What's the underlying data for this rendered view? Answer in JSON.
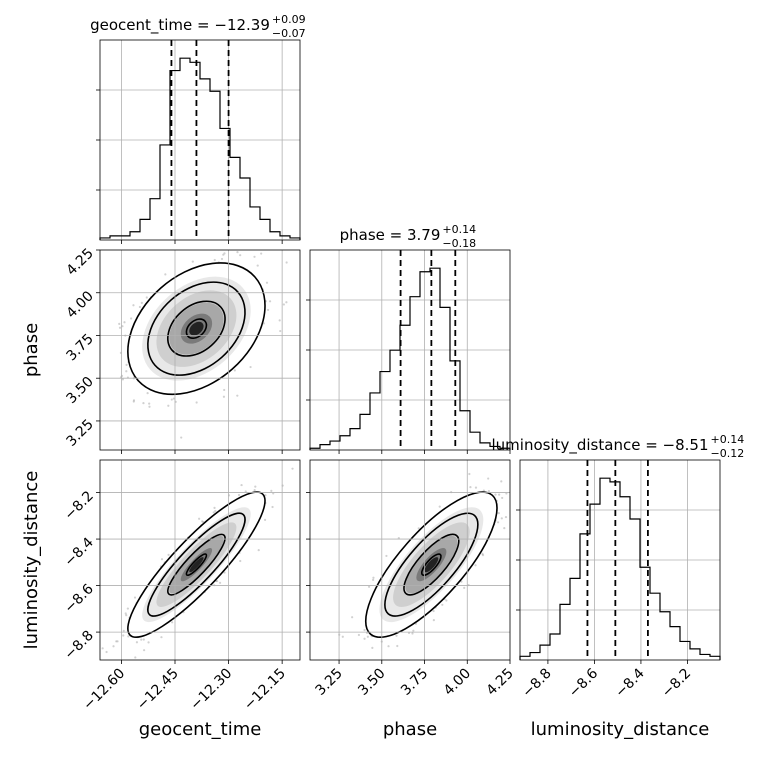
{
  "chart_data": {
    "type": "corner",
    "parameters": [
      "geocent_time",
      "phase",
      "luminosity_distance"
    ],
    "axis_labels": {
      "geocent_time": "geocent_time",
      "phase": "phase",
      "luminosity_distance": "luminosity_distance"
    },
    "ranges": {
      "geocent_time": [
        -12.66,
        -12.1
      ],
      "phase": [
        3.08,
        4.25
      ],
      "luminosity_distance": [
        -8.92,
        -8.06
      ]
    },
    "ticks": {
      "geocent_time": [
        {
          "v": -12.6,
          "label": "−12.60"
        },
        {
          "v": -12.45,
          "label": "−12.45"
        },
        {
          "v": -12.3,
          "label": "−12.30"
        },
        {
          "v": -12.15,
          "label": "−12.15"
        }
      ],
      "phase": [
        {
          "v": 3.25,
          "label": "3.25"
        },
        {
          "v": 3.5,
          "label": "3.50"
        },
        {
          "v": 3.75,
          "label": "3.75"
        },
        {
          "v": 4.0,
          "label": "4.00"
        },
        {
          "v": 4.25,
          "label": "4.25"
        }
      ],
      "luminosity_distance": [
        {
          "v": -8.8,
          "label": "−8.8"
        },
        {
          "v": -8.6,
          "label": "−8.6"
        },
        {
          "v": -8.4,
          "label": "−8.4"
        },
        {
          "v": -8.2,
          "label": "−8.2"
        }
      ]
    },
    "titles": {
      "geocent_time": {
        "prefix": "geocent_time = −12.39",
        "sup": "+0.09",
        "sub": "−0.07"
      },
      "phase": {
        "prefix": "phase = 3.79",
        "sup": "+0.14",
        "sub": "−0.18"
      },
      "luminosity_distance": {
        "prefix": "luminosity_distance = −8.51",
        "sup": "+0.14",
        "sub": "−0.12"
      }
    },
    "quantiles": {
      "geocent_time": [
        -12.46,
        -12.39,
        -12.3
      ],
      "phase": [
        3.61,
        3.79,
        3.93
      ],
      "luminosity_distance": [
        -8.63,
        -8.51,
        -8.37
      ]
    },
    "histograms": {
      "geocent_time": {
        "edges": [
          -12.66,
          -12.632,
          -12.604,
          -12.576,
          -12.548,
          -12.52,
          -12.492,
          -12.464,
          -12.436,
          -12.408,
          -12.38,
          -12.352,
          -12.324,
          -12.296,
          -12.268,
          -12.24,
          -12.212,
          -12.184,
          -12.156,
          -12.128,
          -12.1
        ],
        "counts": [
          1,
          2,
          2,
          4,
          10,
          20,
          46,
          82,
          88,
          86,
          78,
          72,
          54,
          40,
          30,
          16,
          10,
          4,
          2,
          1
        ]
      },
      "phase": {
        "edges": [
          3.08,
          3.1385,
          3.197,
          3.2555,
          3.314,
          3.3725,
          3.431,
          3.4895,
          3.548,
          3.6065,
          3.665,
          3.7235,
          3.782,
          3.8405,
          3.899,
          3.9575,
          4.016,
          4.0745,
          4.133,
          4.1915,
          4.25
        ],
        "counts": [
          1,
          3,
          5,
          8,
          12,
          20,
          32,
          44,
          56,
          70,
          86,
          100,
          102,
          80,
          50,
          22,
          10,
          4,
          2,
          1
        ]
      },
      "luminosity_distance": {
        "edges": [
          -8.92,
          -8.877,
          -8.834,
          -8.791,
          -8.748,
          -8.705,
          -8.662,
          -8.619,
          -8.576,
          -8.533,
          -8.49,
          -8.447,
          -8.404,
          -8.361,
          -8.318,
          -8.275,
          -8.232,
          -8.189,
          -8.146,
          -8.103,
          -8.06
        ],
        "counts": [
          2,
          4,
          8,
          14,
          30,
          44,
          68,
          84,
          98,
          96,
          88,
          76,
          50,
          36,
          26,
          18,
          10,
          6,
          3,
          2
        ]
      }
    },
    "grid": true
  }
}
